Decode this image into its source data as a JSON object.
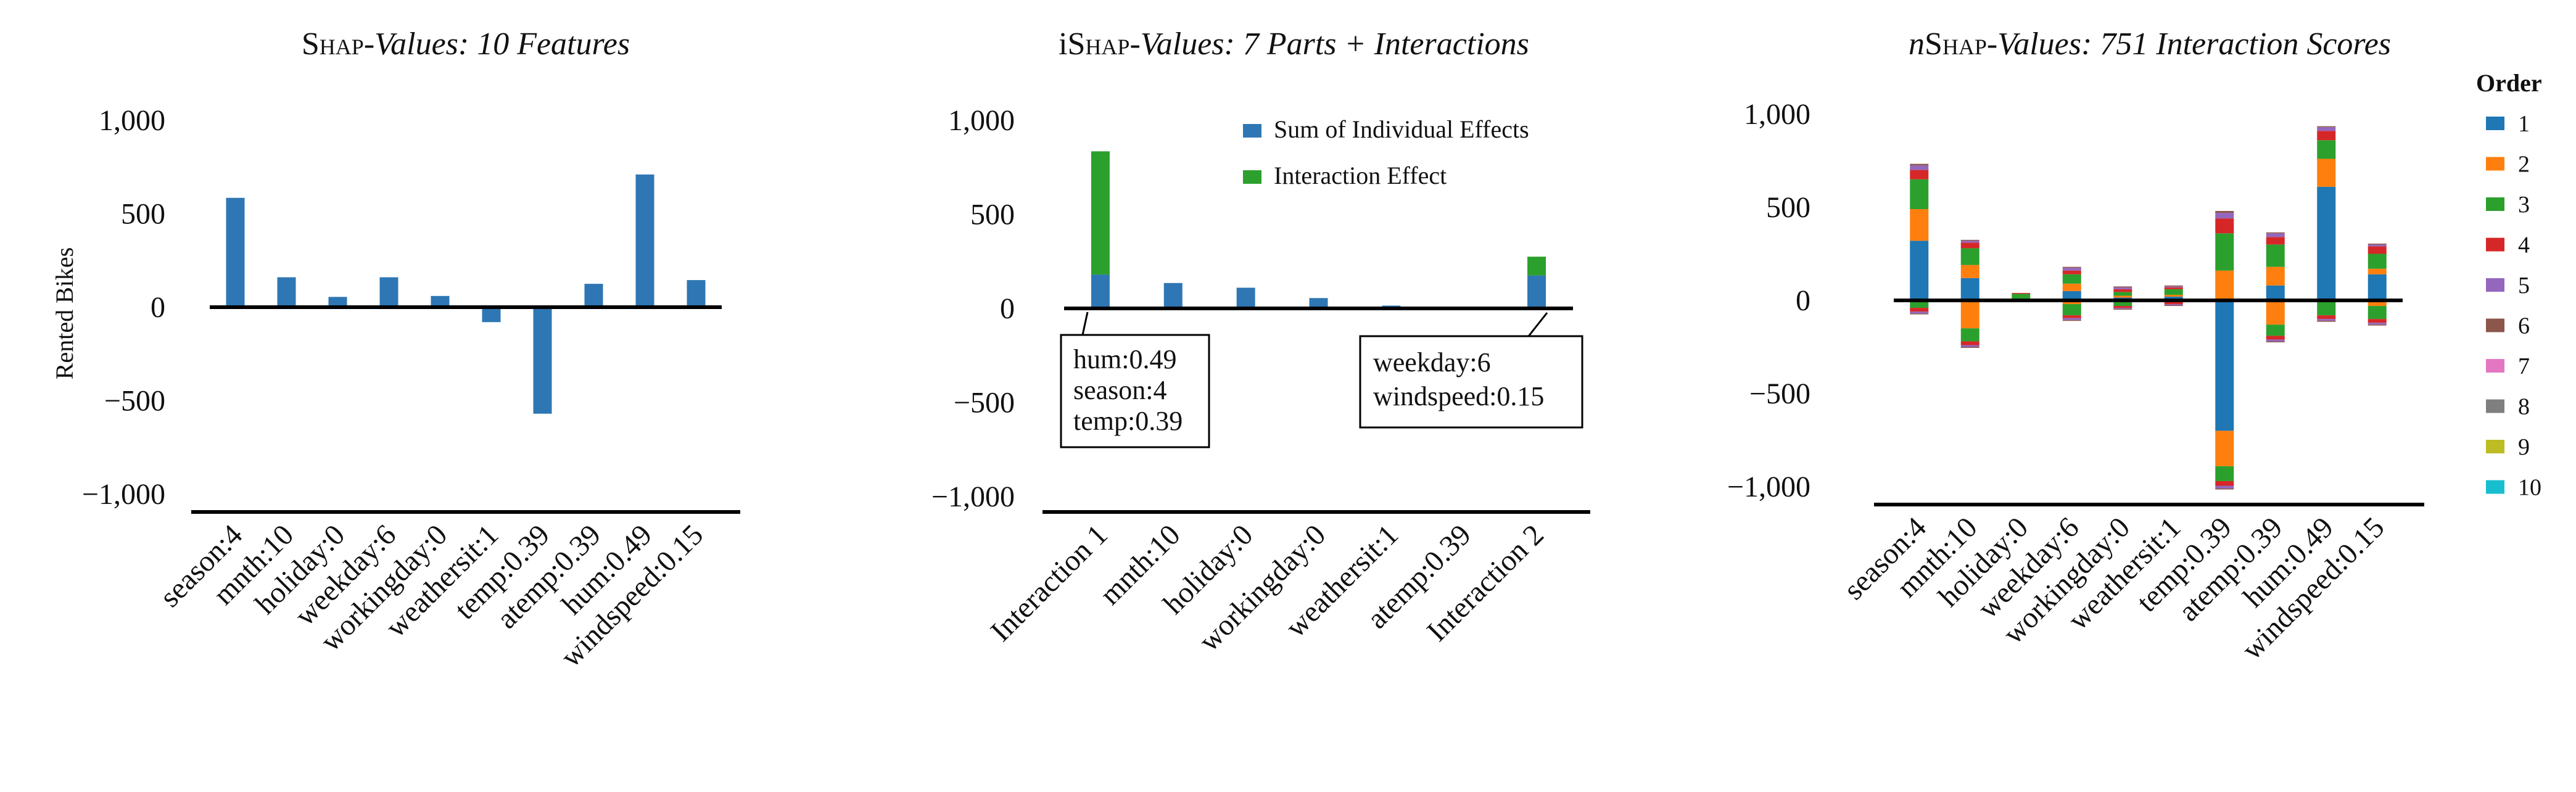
{
  "chart_data": [
    {
      "type": "bar",
      "title": {
        "pre": "",
        "sc": "Shap",
        "post": "-Values: 10 Features"
      },
      "ylabel": "Rented Bikes",
      "ylim": [
        -1100,
        1000
      ],
      "yticks": [
        1000,
        500,
        0,
        -500,
        -1000
      ],
      "ytick_labels": [
        "1,000",
        "500",
        "0",
        "−500",
        "−1,000"
      ],
      "categories": [
        "season:4",
        "mnth:10",
        "holiday:0",
        "weekday:6",
        "workingday:0",
        "weathersit:1",
        "temp:0.39",
        "atemp:0.39",
        "hum:0.49",
        "windspeed:0.15"
      ],
      "values": [
        585,
        160,
        55,
        160,
        60,
        -80,
        -570,
        125,
        710,
        145
      ],
      "color": "#2e77b4"
    },
    {
      "type": "bar",
      "stacked": true,
      "title": {
        "pre": "i",
        "sc": "Shap",
        "post": "-Values: 7 Parts + Interactions"
      },
      "ylim": [
        -1100,
        1000
      ],
      "yticks": [
        1000,
        500,
        0,
        -500,
        -1000
      ],
      "ytick_labels": [
        "1,000",
        "500",
        "0",
        "−500",
        "−1,000"
      ],
      "categories": [
        "Interaction 1",
        "mnth:10",
        "holiday:0",
        "workingday:0",
        "weathersit:1",
        "atemp:0.39",
        "Interaction 2"
      ],
      "series": [
        {
          "name": "Sum of Individual Effects",
          "color": "#2e77b4",
          "values": [
            180,
            135,
            110,
            55,
            15,
            8,
            175
          ]
        },
        {
          "name": "Interaction Effect",
          "color": "#2ca02c",
          "values": [
            655,
            0,
            0,
            0,
            0,
            0,
            100
          ]
        }
      ],
      "legend": "top-right",
      "annotations": [
        {
          "target": "Interaction 1",
          "lines": [
            "hum:0.49",
            "season:4",
            "temp:0.39"
          ]
        },
        {
          "target": "Interaction 2",
          "lines": [
            "weekday:6",
            "windspeed:0.15"
          ]
        }
      ]
    },
    {
      "type": "bar",
      "stacked": true,
      "title": {
        "pre": "n",
        "sc": "Shap",
        "post": "-Values: 751 Interaction Scores"
      },
      "ylim": [
        -1100,
        1000
      ],
      "yticks": [
        1000,
        500,
        0,
        -500,
        -1000
      ],
      "ytick_labels": [
        "1,000",
        "500",
        "0",
        "−500",
        "−1,000"
      ],
      "categories": [
        "season:4",
        "mnth:10",
        "holiday:0",
        "weekday:6",
        "workingday:0",
        "weathersit:1",
        "temp:0.39",
        "atemp:0.39",
        "hum:0.49",
        "windspeed:0.15"
      ],
      "legend_title": "Order",
      "legend": "right",
      "series": [
        {
          "name": "1",
          "color": "#1f77b4",
          "values": [
            [
              320,
              0
            ],
            [
              120,
              0
            ],
            [
              10,
              0
            ],
            [
              50,
              0
            ],
            [
              15,
              0
            ],
            [
              20,
              0
            ],
            [
              0,
              -700
            ],
            [
              80,
              0
            ],
            [
              610,
              0
            ],
            [
              140,
              0
            ]
          ]
        },
        {
          "name": "2",
          "color": "#ff7f0e",
          "values": [
            [
              170,
              0
            ],
            [
              70,
              -150
            ],
            [
              0,
              0
            ],
            [
              40,
              -20
            ],
            [
              10,
              -10
            ],
            [
              10,
              0
            ],
            [
              160,
              -190
            ],
            [
              100,
              -130
            ],
            [
              150,
              0
            ],
            [
              30,
              -30
            ]
          ]
        },
        {
          "name": "3",
          "color": "#2ca02c",
          "values": [
            [
              160,
              -40
            ],
            [
              90,
              -70
            ],
            [
              25,
              0
            ],
            [
              50,
              -60
            ],
            [
              20,
              -20
            ],
            [
              30,
              -10
            ],
            [
              200,
              -80
            ],
            [
              120,
              -60
            ],
            [
              100,
              -80
            ],
            [
              80,
              -70
            ]
          ]
        },
        {
          "name": "4",
          "color": "#d62728",
          "values": [
            [
              50,
              -20
            ],
            [
              30,
              -20
            ],
            [
              5,
              0
            ],
            [
              20,
              -15
            ],
            [
              15,
              -10
            ],
            [
              10,
              -10
            ],
            [
              80,
              -25
            ],
            [
              40,
              -20
            ],
            [
              50,
              -20
            ],
            [
              40,
              -20
            ]
          ]
        },
        {
          "name": "5",
          "color": "#9467bd",
          "values": [
            [
              25,
              -10
            ],
            [
              10,
              -10
            ],
            [
              0,
              0
            ],
            [
              15,
              -10
            ],
            [
              10,
              -5
            ],
            [
              5,
              -5
            ],
            [
              30,
              -15
            ],
            [
              20,
              -10
            ],
            [
              20,
              -10
            ],
            [
              10,
              -10
            ]
          ]
        },
        {
          "name": "6",
          "color": "#8c564b",
          "values": [
            [
              8,
              -5
            ],
            [
              5,
              -5
            ],
            [
              0,
              0
            ],
            [
              5,
              -5
            ],
            [
              5,
              -5
            ],
            [
              5,
              -5
            ],
            [
              10,
              -5
            ],
            [
              5,
              -5
            ],
            [
              5,
              -5
            ],
            [
              5,
              -5
            ]
          ]
        },
        {
          "name": "7",
          "color": "#e377c2",
          "values": [
            [
              0,
              0
            ],
            [
              0,
              0
            ],
            [
              0,
              0
            ],
            [
              0,
              0
            ],
            [
              0,
              0
            ],
            [
              0,
              0
            ],
            [
              0,
              0
            ],
            [
              0,
              0
            ],
            [
              0,
              0
            ],
            [
              0,
              0
            ]
          ]
        },
        {
          "name": "8",
          "color": "#7f7f7f",
          "values": [
            [
              0,
              0
            ],
            [
              0,
              0
            ],
            [
              0,
              0
            ],
            [
              0,
              0
            ],
            [
              0,
              0
            ],
            [
              0,
              0
            ],
            [
              0,
              0
            ],
            [
              0,
              0
            ],
            [
              0,
              0
            ],
            [
              0,
              0
            ]
          ]
        },
        {
          "name": "9",
          "color": "#bcbd22",
          "values": [
            [
              0,
              0
            ],
            [
              0,
              0
            ],
            [
              0,
              0
            ],
            [
              0,
              0
            ],
            [
              0,
              0
            ],
            [
              0,
              0
            ],
            [
              0,
              0
            ],
            [
              0,
              0
            ],
            [
              0,
              0
            ],
            [
              0,
              0
            ]
          ]
        },
        {
          "name": "10",
          "color": "#17becf",
          "values": [
            [
              0,
              0
            ],
            [
              0,
              0
            ],
            [
              0,
              0
            ],
            [
              0,
              0
            ],
            [
              0,
              0
            ],
            [
              0,
              0
            ],
            [
              0,
              0
            ],
            [
              0,
              0
            ],
            [
              0,
              0
            ],
            [
              0,
              0
            ]
          ]
        }
      ]
    }
  ]
}
